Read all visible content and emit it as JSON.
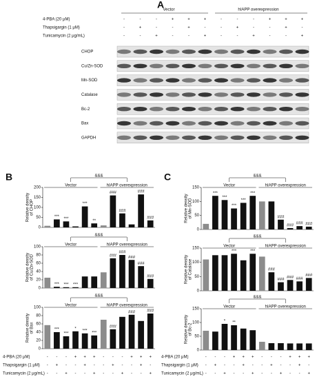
{
  "panel_labels": [
    "A",
    "B",
    "C"
  ],
  "groups": [
    "Vector",
    "hIAPP overexpression"
  ],
  "bracket_label": "&&&",
  "treatments": [
    {
      "name": "4-PBA (20 μM)",
      "signs": [
        "-",
        "-",
        "-",
        "+",
        "+",
        "+",
        "-",
        "-",
        "-",
        "+",
        "+",
        "+"
      ]
    },
    {
      "name": "Thapsigargin (1 μM)",
      "signs": [
        "-",
        "+",
        "-",
        "-",
        "+",
        "-",
        "-",
        "+",
        "-",
        "-",
        "+",
        "-"
      ]
    },
    {
      "name": "Tunicamycin (2 μg/mL)",
      "signs": [
        "-",
        "-",
        "+",
        "-",
        "-",
        "+",
        "-",
        "-",
        "+",
        "-",
        "-",
        "+"
      ]
    }
  ],
  "blots": [
    "CHOP",
    "Cu/Zn-SOD",
    "Mn-SOD",
    "Catalase",
    "Bc-2",
    "Bax",
    "GAPDH"
  ],
  "chart_data": [
    {
      "type": "bar",
      "ylabel": [
        "Relative density",
        "of CHOP"
      ],
      "values": [
        8,
        40,
        30,
        5,
        105,
        20,
        10,
        160,
        70,
        15,
        165,
        35
      ],
      "significance": [
        null,
        "***",
        "***",
        null,
        "***",
        "**",
        null,
        "###",
        "###",
        null,
        "###",
        "###"
      ],
      "colors": [
        "#8c8c8c",
        "#111111",
        "#111111",
        "#111111",
        "#111111",
        "#111111",
        "#8c8c8c",
        "#111111",
        "#111111",
        "#111111",
        "#111111",
        "#111111"
      ],
      "ylim": [
        0,
        200
      ],
      "yticks": [
        0,
        50,
        100,
        150,
        200
      ]
    },
    {
      "type": "bar",
      "ylabel": [
        "Relative density",
        "of Cu/Zn-SOD"
      ],
      "values": [
        25,
        3,
        2,
        2,
        28,
        28,
        38,
        72,
        80,
        68,
        53,
        22
      ],
      "significance": [
        null,
        "***",
        "***",
        "***",
        null,
        null,
        null,
        "###",
        "###",
        "###",
        "###",
        "###"
      ],
      "colors": [
        "#8c8c8c",
        "#111111",
        "#111111",
        "#111111",
        "#111111",
        "#111111",
        "#8c8c8c",
        "#111111",
        "#111111",
        "#111111",
        "#111111",
        "#111111"
      ],
      "ylim": [
        0,
        100
      ],
      "yticks": [
        0,
        20,
        40,
        60,
        80,
        100
      ]
    },
    {
      "type": "bar",
      "ylabel": [
        "Relative density",
        "of Bax"
      ],
      "values": [
        57,
        40,
        30,
        42,
        37,
        32,
        70,
        47,
        77,
        82,
        67,
        85
      ],
      "significance": [
        null,
        "***",
        "***",
        "*",
        "***",
        "***",
        null,
        "###",
        null,
        "###",
        null,
        "###"
      ],
      "colors": [
        "#8c8c8c",
        "#111111",
        "#111111",
        "#111111",
        "#111111",
        "#111111",
        "#8c8c8c",
        "#111111",
        "#111111",
        "#111111",
        "#111111",
        "#111111"
      ],
      "ylim": [
        0,
        100
      ],
      "yticks": [
        0,
        20,
        40,
        60,
        80,
        100
      ]
    },
    {
      "type": "bar",
      "ylabel": [
        "Relative density",
        "of Mn-SOD"
      ],
      "values": [
        20,
        120,
        105,
        75,
        95,
        120,
        100,
        100,
        35,
        5,
        12,
        10
      ],
      "significance": [
        null,
        "***",
        "***",
        "***",
        "***",
        "***",
        null,
        null,
        "###",
        "###",
        "###",
        "###"
      ],
      "colors": [
        "#8c8c8c",
        "#111111",
        "#111111",
        "#111111",
        "#111111",
        "#111111",
        "#8c8c8c",
        "#111111",
        "#111111",
        "#111111",
        "#111111",
        "#111111"
      ],
      "ylim": [
        0,
        150
      ],
      "yticks": [
        0,
        50,
        100,
        150
      ]
    },
    {
      "type": "bar",
      "ylabel": [
        "Relative density",
        "of Catalase"
      ],
      "values": [
        110,
        125,
        125,
        130,
        107,
        130,
        120,
        65,
        30,
        38,
        33,
        45
      ],
      "significance": [
        null,
        null,
        null,
        "***",
        null,
        "***",
        null,
        "###",
        "###",
        "###",
        "###",
        "###"
      ],
      "colors": [
        "#8c8c8c",
        "#111111",
        "#111111",
        "#111111",
        "#111111",
        "#111111",
        "#8c8c8c",
        "#111111",
        "#111111",
        "#111111",
        "#111111",
        "#111111"
      ],
      "ylim": [
        0,
        150
      ],
      "yticks": [
        0,
        50,
        100,
        150
      ]
    },
    {
      "type": "bar",
      "ylabel": [
        "Relative density",
        "of Bc-2"
      ],
      "values": [
        70,
        67,
        95,
        90,
        78,
        72,
        30,
        25,
        25,
        24,
        24,
        24
      ],
      "significance": [
        null,
        null,
        "*",
        "**",
        null,
        null,
        null,
        null,
        null,
        null,
        null,
        null
      ],
      "colors": [
        "#8c8c8c",
        "#111111",
        "#111111",
        "#111111",
        "#111111",
        "#111111",
        "#8c8c8c",
        "#111111",
        "#111111",
        "#111111",
        "#111111",
        "#111111"
      ],
      "ylim": [
        0,
        150
      ],
      "yticks": [
        0,
        50,
        100,
        150
      ]
    }
  ]
}
